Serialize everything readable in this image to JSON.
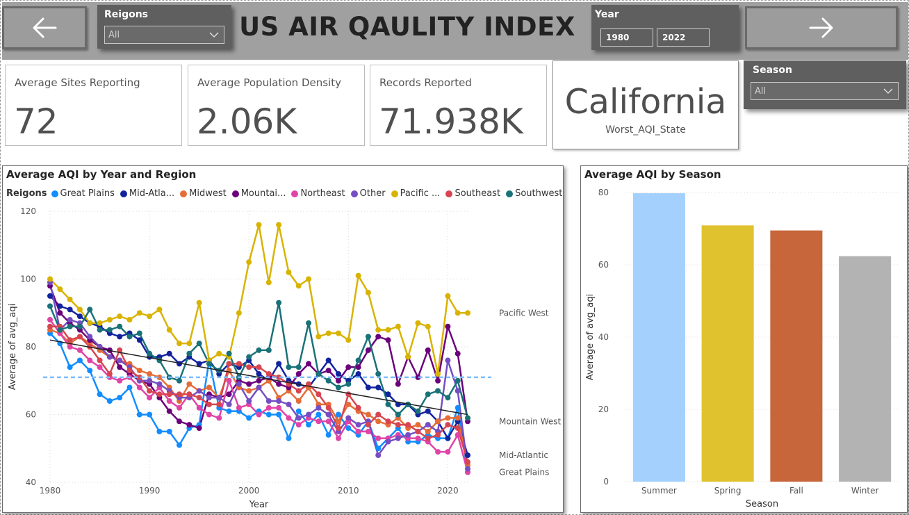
{
  "header": {
    "title": "US AIR QAULITY INDEX",
    "regions_slicer": {
      "title": "Reigons",
      "value": "All"
    },
    "year_slicer": {
      "title": "Year",
      "start": "1980",
      "end": "2022"
    },
    "season_slicer": {
      "title": "Season",
      "value": "All"
    },
    "back_icon": "arrow-left-icon",
    "forward_icon": "arrow-right-icon"
  },
  "kpis": {
    "sites": {
      "label": "Average Sites Reporting",
      "value": "72"
    },
    "density": {
      "label": "Average Population Density",
      "value": "2.06K"
    },
    "records": {
      "label": "Records Reported",
      "value": "71.938K"
    },
    "worst": {
      "label": "Worst_AQI_State",
      "value": "California"
    }
  },
  "colors": {
    "Great Plains": "#118DFF",
    "Mid-Atlantic": "#12239E",
    "Midwest": "#E66C37",
    "Mountain West": "#6B007B",
    "Northeast": "#E044A7",
    "Other": "#744EC2",
    "Pacific West": "#D9B300",
    "Southeast": "#D64550",
    "Southwest": "#197278"
  },
  "chart_data": [
    {
      "type": "line",
      "title": "Average AQI by Year and Region",
      "xlabel": "Year",
      "ylabel": "Average of avg_aqi",
      "xlim": [
        1980,
        2022
      ],
      "ylim": [
        40,
        120
      ],
      "xticks": [
        1980,
        1990,
        2000,
        2010,
        2020
      ],
      "yticks": [
        40,
        60,
        80,
        100,
        120
      ],
      "legend": {
        "title": "Reigons",
        "position": "top-left",
        "entries": [
          "Great Plains",
          "Mid-Atla...",
          "Midwest",
          "Mountai...",
          "Northeast",
          "Other",
          "Pacific ...",
          "Southeast",
          "Southwest"
        ]
      },
      "grid": true,
      "x": [
        1980,
        1981,
        1982,
        1983,
        1984,
        1985,
        1986,
        1987,
        1988,
        1989,
        1990,
        1991,
        1992,
        1993,
        1994,
        1995,
        1996,
        1997,
        1998,
        1999,
        2000,
        2001,
        2002,
        2003,
        2004,
        2005,
        2006,
        2007,
        2008,
        2009,
        2010,
        2011,
        2012,
        2013,
        2014,
        2015,
        2016,
        2017,
        2018,
        2019,
        2020,
        2021,
        2022
      ],
      "series": [
        {
          "name": "Great Plains",
          "values": [
            84,
            81,
            74,
            76,
            73,
            66,
            64,
            65,
            68,
            60,
            60,
            55,
            55,
            51,
            56,
            57,
            76,
            62,
            61,
            61,
            59,
            61,
            60,
            60,
            53,
            61,
            57,
            60,
            54,
            60,
            56,
            54,
            58,
            50,
            53,
            56,
            52,
            52,
            54,
            53,
            53,
            62,
            43
          ]
        },
        {
          "name": "Mid-Atlantic",
          "values": [
            95,
            92,
            91,
            89,
            87,
            86,
            84,
            83,
            84,
            82,
            77,
            77,
            78,
            75,
            77,
            75,
            76,
            72,
            75,
            74,
            76,
            72,
            70,
            75,
            70,
            69,
            68,
            72,
            76,
            72,
            70,
            72,
            68,
            68,
            66,
            63,
            63,
            60,
            61,
            58,
            53,
            58,
            48
          ]
        },
        {
          "name": "Midwest",
          "values": [
            85,
            84,
            81,
            83,
            81,
            79,
            77,
            76,
            75,
            73,
            72,
            71,
            68,
            64,
            69,
            67,
            68,
            65,
            73,
            68,
            67,
            68,
            70,
            65,
            67,
            64,
            68,
            63,
            63,
            58,
            63,
            61,
            60,
            58,
            57,
            59,
            56,
            57,
            55,
            58,
            59,
            59,
            45
          ]
        },
        {
          "name": "Mountain West",
          "values": [
            98,
            90,
            87,
            85,
            82,
            80,
            79,
            74,
            72,
            70,
            69,
            65,
            61,
            58,
            57,
            56,
            66,
            65,
            66,
            70,
            69,
            70,
            71,
            69,
            68,
            72,
            75,
            72,
            73,
            70,
            74,
            74,
            79,
            83,
            82,
            69,
            77,
            71,
            79,
            70,
            86,
            78,
            58
          ]
        },
        {
          "name": "Northeast",
          "values": [
            88,
            84,
            80,
            79,
            76,
            74,
            71,
            70,
            71,
            68,
            65,
            68,
            64,
            62,
            66,
            62,
            60,
            59,
            70,
            62,
            63,
            60,
            62,
            62,
            59,
            57,
            59,
            58,
            58,
            53,
            58,
            55,
            55,
            53,
            53,
            54,
            53,
            53,
            52,
            49,
            49,
            54,
            43
          ]
        },
        {
          "name": "Other",
          "values": [
            99,
            85,
            88,
            87,
            83,
            80,
            77,
            76,
            74,
            70,
            70,
            69,
            67,
            65,
            65,
            67,
            65,
            65,
            63,
            69,
            64,
            68,
            64,
            64,
            63,
            59,
            60,
            62,
            60,
            55,
            59,
            57,
            58,
            48,
            52,
            53,
            54,
            55,
            57,
            55,
            76,
            67,
            44
          ]
        },
        {
          "name": "Pacific West",
          "values": [
            100,
            97,
            94,
            91,
            87,
            87,
            88,
            89,
            88,
            90,
            89,
            91,
            85,
            81,
            81,
            93,
            76,
            78,
            77,
            90,
            105,
            116,
            99,
            116,
            102,
            98,
            100,
            83,
            84,
            84,
            82,
            101,
            96,
            85,
            85,
            86,
            77,
            87,
            86,
            72,
            95,
            90,
            90
          ]
        },
        {
          "name": "Southeast",
          "values": [
            86,
            86,
            82,
            83,
            80,
            76,
            72,
            79,
            73,
            71,
            67,
            66,
            66,
            66,
            66,
            65,
            63,
            63,
            75,
            75,
            74,
            74,
            72,
            71,
            69,
            67,
            69,
            66,
            62,
            56,
            66,
            62,
            57,
            60,
            58,
            57,
            57,
            55,
            53,
            54,
            57,
            56,
            46
          ]
        },
        {
          "name": "Southwest",
          "values": [
            92,
            85,
            86,
            86,
            91,
            85,
            85,
            86,
            83,
            84,
            78,
            76,
            71,
            70,
            78,
            81,
            75,
            73,
            78,
            71,
            77,
            79,
            79,
            93,
            74,
            74,
            87,
            72,
            70,
            68,
            69,
            76,
            83,
            72,
            63,
            60,
            63,
            61,
            66,
            67,
            65,
            70,
            59
          ]
        }
      ],
      "end_labels": [
        "Pacific West",
        "Mountain West",
        "Mid-Atlantic",
        "Great Plains"
      ],
      "average_line": 71,
      "trend_line": {
        "start": [
          1980,
          82
        ],
        "end": [
          2022,
          60
        ]
      }
    },
    {
      "type": "bar",
      "title": "Average AQI by Season",
      "xlabel": "Season",
      "ylabel": "Average of avg_aqi",
      "ylim": [
        0,
        80
      ],
      "yticks": [
        0,
        20,
        40,
        60,
        80
      ],
      "grid": true,
      "categories": [
        "Summer",
        "Spring",
        "Fall",
        "Winter"
      ],
      "values": [
        79.8,
        70.9,
        69.5,
        62.4
      ],
      "bar_colors": [
        "#A3D0FC",
        "#E0C22F",
        "#C7663B",
        "#B3B3B3"
      ]
    }
  ]
}
